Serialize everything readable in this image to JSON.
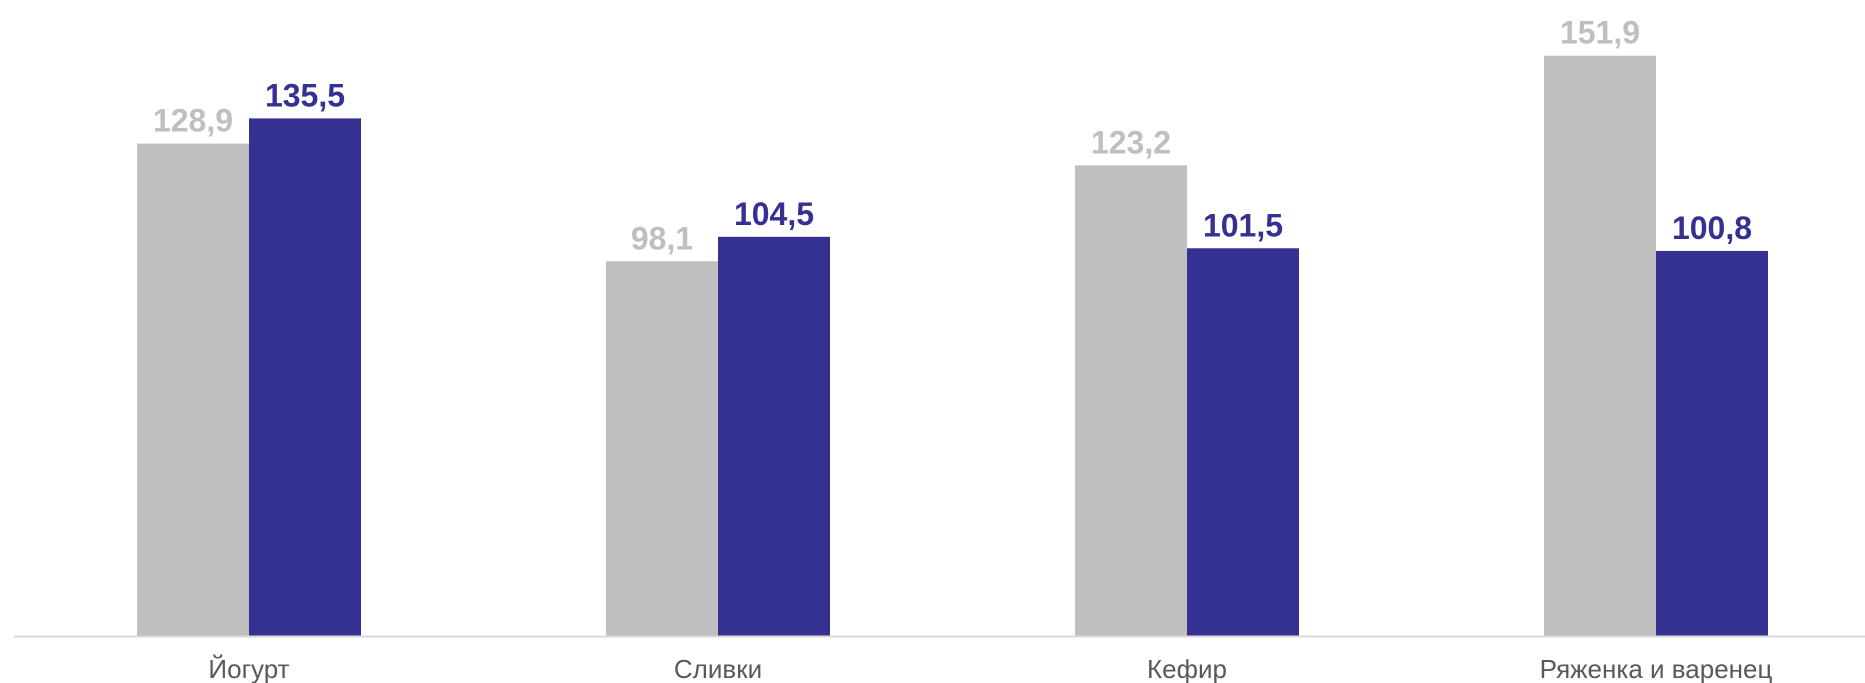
{
  "chart_data": {
    "type": "bar",
    "categories": [
      "Йогурт",
      "Сливки",
      "Кефир",
      "Ряженка и варенец"
    ],
    "series": [
      {
        "color": "#bfbfbf",
        "values": [
          128.9,
          98.1,
          123.2,
          151.9
        ],
        "labels": [
          "128,9",
          "98,1",
          "123,2",
          "151,9"
        ]
      },
      {
        "color": "#353192",
        "values": [
          135.5,
          104.5,
          101.5,
          100.8
        ],
        "labels": [
          "135,5",
          "104,5",
          "101,5",
          "100,8"
        ]
      }
    ],
    "ylim": [
      0,
      160
    ],
    "grid": false,
    "legend": "none",
    "axis_color": "#d9d9d9"
  }
}
